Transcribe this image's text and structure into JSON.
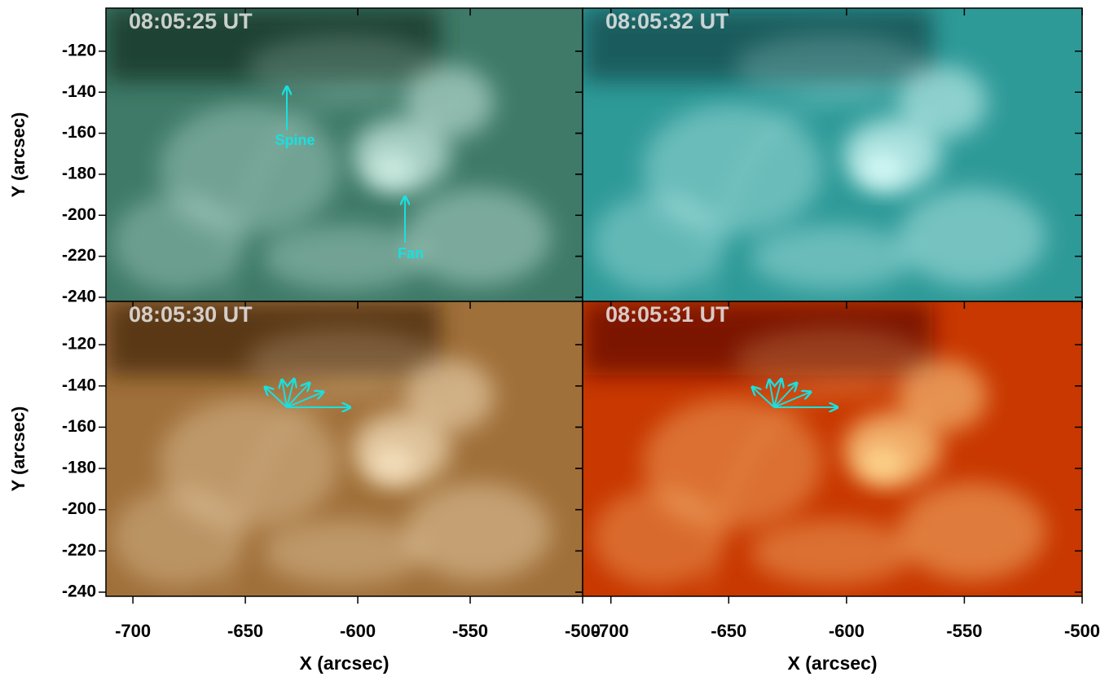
{
  "chart_data": [
    {
      "type": "image",
      "title": "08:05:25 UT",
      "colors": [
        "#123528",
        "#3f7a68",
        "#cfeee4"
      ],
      "xlim": [
        -712,
        -500
      ],
      "ylim": [
        -242,
        -99
      ],
      "xticks": [
        -700,
        -650,
        -600,
        -550,
        -500
      ],
      "yticks": [
        -120,
        -140,
        -160,
        -180,
        -200,
        -220,
        -240
      ],
      "ylabel": "Y (arcsec)",
      "annotations": [
        "Spine",
        "Fan"
      ]
    },
    {
      "type": "image",
      "title": "08:05:32 UT",
      "colors": [
        "#124e50",
        "#2e9a98",
        "#d8fbf8"
      ],
      "xlim": [
        -712,
        -500
      ],
      "ylim": [
        -242,
        -99
      ],
      "xticks": [
        -700,
        -650,
        -600,
        -550,
        -500
      ],
      "yticks": [
        -120,
        -140,
        -160,
        -180,
        -200,
        -220,
        -240
      ]
    },
    {
      "type": "image",
      "title": "08:05:30 UT",
      "colors": [
        "#4a2a0e",
        "#a0703a",
        "#f6e2c0"
      ],
      "xlim": [
        -712,
        -500
      ],
      "ylim": [
        -242,
        -99
      ],
      "xticks": [
        -700,
        -650,
        -600,
        -550,
        -500
      ],
      "yticks": [
        -120,
        -140,
        -160,
        -180,
        -200,
        -220,
        -240
      ],
      "xlabel": "X (arcsec)",
      "ylabel": "Y (arcsec)"
    },
    {
      "type": "image",
      "title": "08:05:31 UT",
      "colors": [
        "#6a0c00",
        "#c83800",
        "#ffd890"
      ],
      "xlim": [
        -712,
        -500
      ],
      "ylim": [
        -242,
        -99
      ],
      "xticks": [
        -700,
        -650,
        -600,
        -550,
        -500
      ],
      "yticks": [
        -120,
        -140,
        -160,
        -180,
        -200,
        -220,
        -240
      ],
      "xlabel": "X (arcsec)"
    }
  ]
}
